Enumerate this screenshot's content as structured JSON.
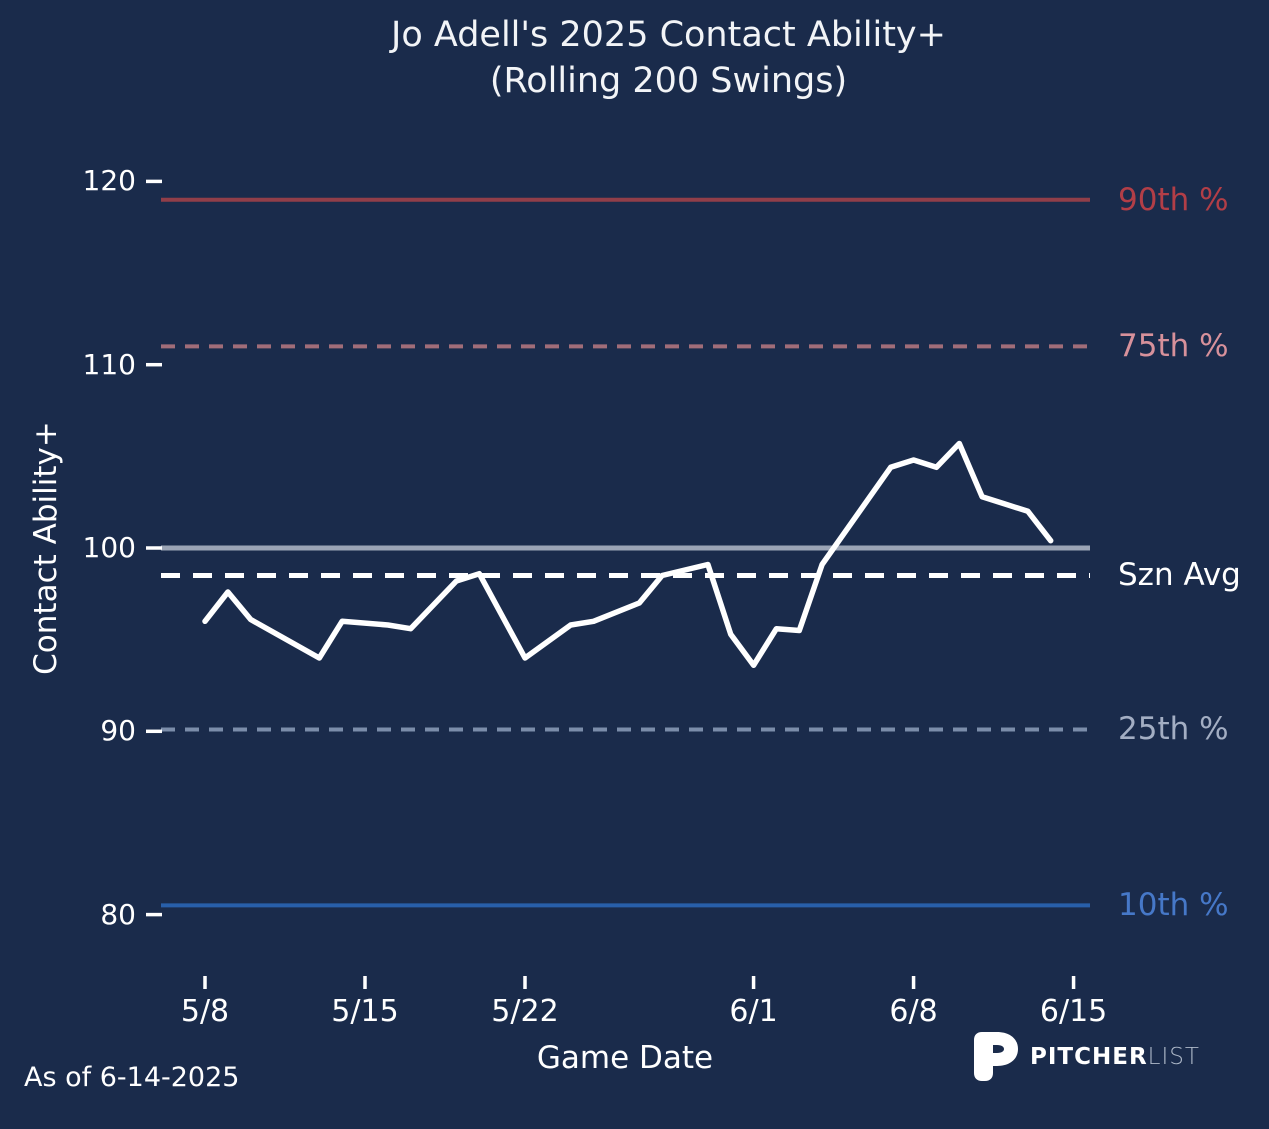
{
  "title": {
    "line1": "Jo Adell's 2025 Contact Ability+",
    "line2": "(Rolling 200 Swings)"
  },
  "footer": {
    "as_of": "As of 6-14-2025",
    "brand_bold": "PITCHER",
    "brand_light": "LIST"
  },
  "colors": {
    "background": "#1a2b4b",
    "text": "#ffffff",
    "data_line": "#ffffff",
    "gridline_100": "#9ba4b5",
    "p90": "#913e49",
    "p75": "#a06d79",
    "p25": "#7b8daa",
    "p10": "#285faa"
  },
  "chart_data": {
    "type": "line",
    "title": "Jo Adell's 2025 Contact Ability+ (Rolling 200 Swings)",
    "xlabel": "Game Date",
    "ylabel": "Contact Ability+",
    "yticks": [
      80,
      90,
      100,
      110,
      120
    ],
    "ylim": [
      78,
      122
    ],
    "grid": "off",
    "legend_position": "right-edge-labels",
    "xticks": [
      {
        "label": "5/8",
        "day": 0
      },
      {
        "label": "5/15",
        "day": 7
      },
      {
        "label": "5/22",
        "day": 14
      },
      {
        "label": "6/1",
        "day": 24
      },
      {
        "label": "6/8",
        "day": 31
      },
      {
        "label": "6/15",
        "day": 38
      }
    ],
    "series": [
      {
        "name": "Rolling 200-swing Contact Ability+",
        "color": "#ffffff",
        "points": [
          {
            "date": "5/8",
            "day": 0,
            "value": 96.0
          },
          {
            "date": "5/9",
            "day": 1,
            "value": 97.6
          },
          {
            "date": "5/10",
            "day": 2,
            "value": 96.1
          },
          {
            "date": "5/13",
            "day": 5,
            "value": 94.0
          },
          {
            "date": "5/14",
            "day": 6,
            "value": 96.0
          },
          {
            "date": "5/16",
            "day": 8,
            "value": 95.8
          },
          {
            "date": "5/17",
            "day": 9,
            "value": 95.6
          },
          {
            "date": "5/19",
            "day": 11,
            "value": 98.2
          },
          {
            "date": "5/20",
            "day": 12,
            "value": 98.6
          },
          {
            "date": "5/22",
            "day": 14,
            "value": 94.0
          },
          {
            "date": "5/24",
            "day": 16,
            "value": 95.8
          },
          {
            "date": "5/25",
            "day": 17,
            "value": 96.0
          },
          {
            "date": "5/27",
            "day": 19,
            "value": 97.0
          },
          {
            "date": "5/28",
            "day": 20,
            "value": 98.5
          },
          {
            "date": "5/30",
            "day": 22,
            "value": 99.1
          },
          {
            "date": "5/31",
            "day": 23,
            "value": 95.3
          },
          {
            "date": "6/1",
            "day": 24,
            "value": 93.6
          },
          {
            "date": "6/2",
            "day": 25,
            "value": 95.6
          },
          {
            "date": "6/3",
            "day": 26,
            "value": 95.5
          },
          {
            "date": "6/4",
            "day": 27,
            "value": 99.1
          },
          {
            "date": "6/7",
            "day": 30,
            "value": 104.4
          },
          {
            "date": "6/8",
            "day": 31,
            "value": 104.8
          },
          {
            "date": "6/9",
            "day": 32,
            "value": 104.4
          },
          {
            "date": "6/10",
            "day": 33,
            "value": 105.7
          },
          {
            "date": "6/11",
            "day": 34,
            "value": 102.8
          },
          {
            "date": "6/12",
            "day": 35,
            "value": 102.4
          },
          {
            "date": "6/13",
            "day": 36,
            "value": 102.0
          },
          {
            "date": "6/14",
            "day": 37,
            "value": 100.4
          }
        ]
      }
    ],
    "reference_lines": [
      {
        "label": "90th %",
        "value": 119.0,
        "style": "solid",
        "line_color": "#913e49",
        "label_color": "#b23e47"
      },
      {
        "label": "75th %",
        "value": 111.0,
        "style": "dashed",
        "line_color": "#a06d79",
        "label_color": "#d7919b"
      },
      {
        "label": "",
        "value": 100.0,
        "style": "solid",
        "line_color": "#9ba4b5",
        "label_color": ""
      },
      {
        "label": "Szn Avg",
        "value": 98.5,
        "style": "dashed",
        "line_color": "#ffffff",
        "label_color": "#ffffff"
      },
      {
        "label": "25th %",
        "value": 90.1,
        "style": "dashed",
        "line_color": "#7b8daa",
        "label_color": "#a3aec3"
      },
      {
        "label": "10th %",
        "value": 80.5,
        "style": "solid",
        "line_color": "#285faa",
        "label_color": "#4678c8"
      }
    ]
  }
}
